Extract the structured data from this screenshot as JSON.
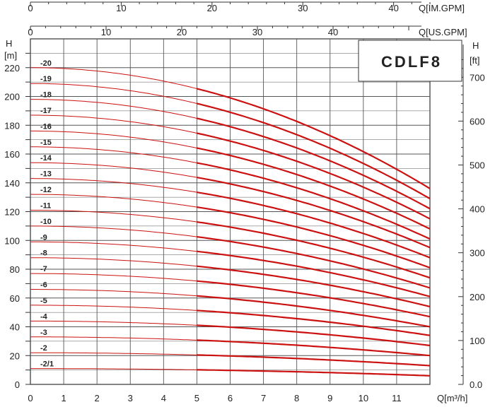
{
  "chart_data": {
    "type": "line",
    "model": "CDLF8",
    "units": {
      "h_m": "H",
      "h_m_unit": "[m]",
      "h_ft": "H",
      "h_ft_unit": "[ft]",
      "q_m3h": "Q[m³/h]",
      "q_us": "Q[US.GPM]",
      "q_im": "Q[IM.GPM]"
    },
    "axes": {
      "q_m3h": {
        "range": [
          0,
          12
        ],
        "ticks": [
          "0",
          "1",
          "2",
          "3",
          "4",
          "5",
          "6",
          "7",
          "8",
          "9",
          "10",
          "11"
        ]
      },
      "q_us": {
        "range": [
          0,
          52.8
        ],
        "ticks": [
          "0",
          "10",
          "20",
          "30",
          "40"
        ]
      },
      "q_im": {
        "range": [
          0,
          44
        ],
        "ticks": [
          "0",
          "10",
          "20",
          "30",
          "40"
        ]
      },
      "h_m": {
        "range": [
          0,
          240
        ],
        "ticks": [
          "0",
          "20",
          "40",
          "60",
          "80",
          "100",
          "120",
          "140",
          "160",
          "180",
          "200",
          "220"
        ]
      },
      "h_ft": {
        "range": [
          0,
          787.4
        ],
        "ticks": [
          "0.0",
          "100",
          "200",
          "300",
          "400",
          "500",
          "600",
          "700"
        ]
      }
    },
    "grid": true,
    "legend": "none",
    "colors": {
      "curve": "#cc1111",
      "grid": "#555555"
    },
    "series": [
      {
        "name": "-20",
        "h_shutoff": 220,
        "h_end": 136,
        "x_end": 12
      },
      {
        "name": "-19",
        "h_shutoff": 209,
        "h_end": 129,
        "x_end": 12
      },
      {
        "name": "-18",
        "h_shutoff": 198,
        "h_end": 122,
        "x_end": 12
      },
      {
        "name": "-17",
        "h_shutoff": 187,
        "h_end": 115,
        "x_end": 12
      },
      {
        "name": "-16",
        "h_shutoff": 176,
        "h_end": 108,
        "x_end": 12
      },
      {
        "name": "-15",
        "h_shutoff": 165,
        "h_end": 101,
        "x_end": 12
      },
      {
        "name": "-14",
        "h_shutoff": 154,
        "h_end": 95,
        "x_end": 12
      },
      {
        "name": "-13",
        "h_shutoff": 143,
        "h_end": 88,
        "x_end": 12
      },
      {
        "name": "-12",
        "h_shutoff": 132,
        "h_end": 81,
        "x_end": 12
      },
      {
        "name": "-11",
        "h_shutoff": 121,
        "h_end": 74,
        "x_end": 12
      },
      {
        "name": "-10",
        "h_shutoff": 110,
        "h_end": 67,
        "x_end": 12
      },
      {
        "name": "-9",
        "h_shutoff": 99,
        "h_end": 61,
        "x_end": 12
      },
      {
        "name": "-8",
        "h_shutoff": 88,
        "h_end": 54,
        "x_end": 12
      },
      {
        "name": "-7",
        "h_shutoff": 77,
        "h_end": 47,
        "x_end": 12
      },
      {
        "name": "-6",
        "h_shutoff": 66,
        "h_end": 40,
        "x_end": 12
      },
      {
        "name": "-5",
        "h_shutoff": 55,
        "h_end": 34,
        "x_end": 12
      },
      {
        "name": "-4",
        "h_shutoff": 44,
        "h_end": 27,
        "x_end": 12
      },
      {
        "name": "-3",
        "h_shutoff": 33,
        "h_end": 20,
        "x_end": 12
      },
      {
        "name": "-2",
        "h_shutoff": 22,
        "h_end": 13,
        "x_end": 12
      },
      {
        "name": "-2/1",
        "h_shutoff": 11,
        "h_end": 6,
        "x_end": 12
      }
    ]
  }
}
